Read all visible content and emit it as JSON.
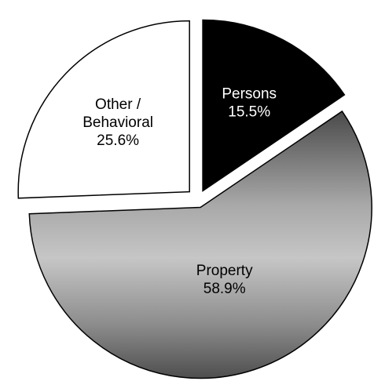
{
  "chart_data": {
    "type": "pie",
    "exploded": true,
    "slices": [
      {
        "key": "persons",
        "category": "Persons",
        "value": 15.5,
        "percent_label": "15.5%",
        "fill": "#000000",
        "label_color": "#ffffff"
      },
      {
        "key": "property",
        "category": "Property",
        "value": 58.9,
        "percent_label": "58.9%",
        "fill": "gradient-gray",
        "label_color": "#000000"
      },
      {
        "key": "other",
        "category_lines": [
          "Other /",
          "Behavioral"
        ],
        "value": 25.6,
        "percent_label": "25.6%",
        "fill": "#ffffff",
        "label_color": "#000000"
      }
    ]
  }
}
